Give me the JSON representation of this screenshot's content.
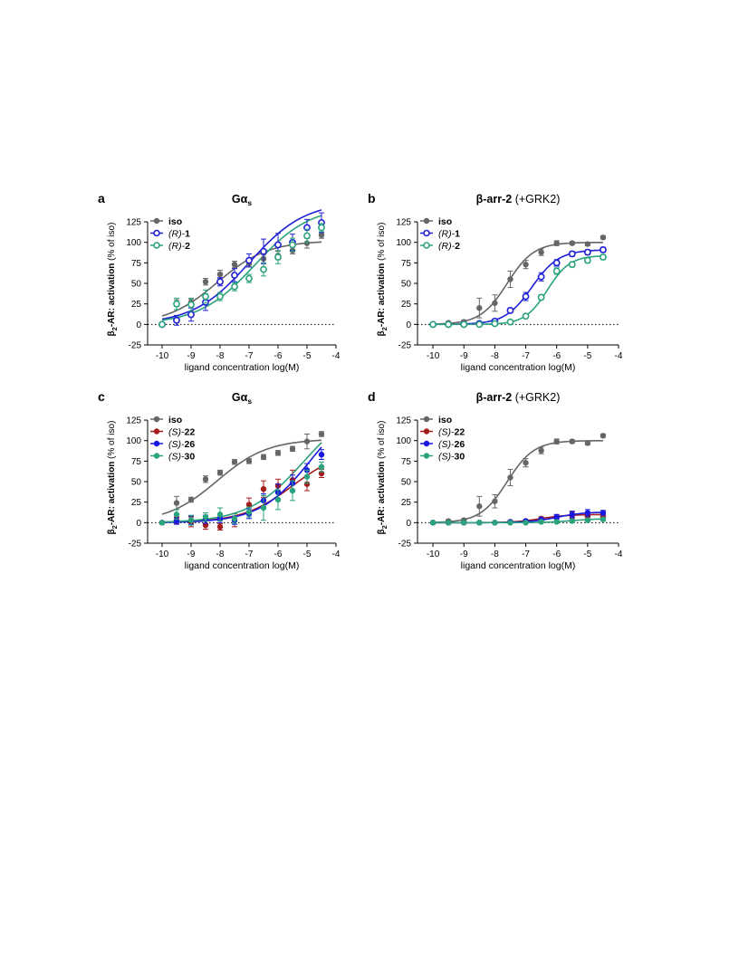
{
  "chart_data": [
    {
      "panel": "a",
      "type": "scatter",
      "title": "Gα",
      "title_sub": "s",
      "title_suffix": "",
      "ylabel_prefix": "β",
      "ylabel_sub": "2",
      "ylabel_bold": "-AR: activation",
      "ylabel_rest": " (% of iso)",
      "xlabel": "ligand concentration log(M)",
      "xlim": [
        -10.5,
        -4
      ],
      "ylim": [
        -25,
        135
      ],
      "xticks": [
        -10,
        -9,
        -8,
        -7,
        -6,
        -5,
        -4
      ],
      "yticks": [
        -25,
        0,
        25,
        50,
        75,
        100,
        125
      ],
      "zero_line": true,
      "legend_position": "top-left",
      "series": [
        {
          "name": "iso",
          "name_prefix": "",
          "name_suffix": "",
          "color": "#666666",
          "marker": "filled",
          "x": [
            -10,
            -9.5,
            -9,
            -8.5,
            -8,
            -7.5,
            -7,
            -6.5,
            -6,
            -5.5,
            -5,
            -4.5
          ],
          "y": [
            0,
            26,
            27,
            52,
            61,
            73,
            74,
            80,
            84,
            90,
            99,
            109
          ],
          "err": [
            0,
            4,
            4,
            4,
            5,
            4,
            4,
            5,
            5,
            4,
            6,
            4
          ],
          "fit": {
            "bottom": 0,
            "top": 102,
            "logec50": -8.1,
            "hill": 0.5
          }
        },
        {
          "name": "1",
          "name_prefix": "(R)-",
          "name_suffix": "",
          "color": "#1f1fd6",
          "marker": "open",
          "x": [
            -10,
            -9.5,
            -9,
            -8.5,
            -8,
            -7.5,
            -7,
            -6.5,
            -6,
            -5.5,
            -5,
            -4.5
          ],
          "y": [
            0,
            5,
            12,
            27,
            52,
            60,
            78,
            89,
            97,
            100,
            118,
            124
          ],
          "err": [
            0,
            6,
            8,
            10,
            5,
            8,
            8,
            15,
            14,
            10,
            10,
            12
          ],
          "fit": {
            "bottom": 0,
            "top": 150,
            "logec50": -7.0,
            "hill": 0.45
          }
        },
        {
          "name": "2",
          "name_prefix": "(R)-",
          "name_suffix": "",
          "color": "#2aa37e",
          "marker": "open",
          "x": [
            -10,
            -9.5,
            -9,
            -8.5,
            -8,
            -7.5,
            -7,
            -6.5,
            -6,
            -5.5,
            -5,
            -4.5
          ],
          "y": [
            0,
            25,
            24,
            34,
            34,
            46,
            56,
            67,
            82,
            97,
            108,
            118
          ],
          "err": [
            0,
            7,
            8,
            8,
            5,
            5,
            5,
            8,
            8,
            8,
            8,
            5
          ],
          "fit": {
            "bottom": 0,
            "top": 145,
            "logec50": -6.8,
            "hill": 0.45
          }
        }
      ]
    },
    {
      "panel": "b",
      "type": "scatter",
      "title": "β-arr-2",
      "title_sub": "",
      "title_suffix": " (+GRK2)",
      "ylabel_prefix": "β",
      "ylabel_sub": "2",
      "ylabel_bold": "-AR: activation",
      "ylabel_rest": " (% of iso)",
      "xlabel": "ligand concentration log(M)",
      "xlim": [
        -10.5,
        -4
      ],
      "ylim": [
        -25,
        135
      ],
      "xticks": [
        -10,
        -9,
        -8,
        -7,
        -6,
        -5,
        -4
      ],
      "yticks": [
        -25,
        0,
        25,
        50,
        75,
        100,
        125
      ],
      "zero_line": true,
      "legend_position": "top-left",
      "series": [
        {
          "name": "iso",
          "name_prefix": "",
          "name_suffix": "",
          "color": "#666666",
          "marker": "filled",
          "x": [
            -10,
            -9.5,
            -9,
            -8.5,
            -8,
            -7.5,
            -7,
            -6.5,
            -6,
            -5.5,
            -5,
            -4.5
          ],
          "y": [
            0,
            2,
            3,
            20,
            26,
            55,
            73,
            88,
            99,
            99,
            98,
            106
          ],
          "err": [
            0,
            1,
            2,
            12,
            10,
            10,
            5,
            4,
            3,
            2,
            2,
            2
          ],
          "fit": {
            "bottom": 0,
            "top": 100,
            "logec50": -7.6,
            "hill": 1.0
          }
        },
        {
          "name": "1",
          "name_prefix": "(R)-",
          "name_suffix": "",
          "color": "#1f1fd6",
          "marker": "open",
          "x": [
            -10,
            -9.5,
            -9,
            -8.5,
            -8,
            -7.5,
            -7,
            -6.5,
            -6,
            -5.5,
            -5,
            -4.5
          ],
          "y": [
            0,
            0,
            0,
            1,
            4,
            17,
            34,
            58,
            75,
            86,
            88,
            91
          ],
          "err": [
            0,
            0,
            0,
            1,
            2,
            3,
            5,
            5,
            4,
            3,
            3,
            3
          ],
          "fit": {
            "bottom": 0,
            "top": 91,
            "logec50": -6.8,
            "hill": 1.0
          }
        },
        {
          "name": "2",
          "name_prefix": "(R)-",
          "name_suffix": "",
          "color": "#2aa37e",
          "marker": "open",
          "x": [
            -10,
            -9.5,
            -9,
            -8.5,
            -8,
            -7.5,
            -7,
            -6.5,
            -6,
            -5.5,
            -5,
            -4.5
          ],
          "y": [
            0,
            0,
            0,
            0,
            1,
            3,
            10,
            33,
            65,
            73,
            78,
            82
          ],
          "err": [
            0,
            0,
            0,
            0,
            1,
            1,
            2,
            3,
            4,
            3,
            3,
            3
          ],
          "fit": {
            "bottom": 0,
            "top": 84,
            "logec50": -6.3,
            "hill": 1.2
          }
        }
      ]
    },
    {
      "panel": "c",
      "type": "scatter",
      "title": "Gα",
      "title_sub": "s",
      "title_suffix": "",
      "ylabel_prefix": "β",
      "ylabel_sub": "2",
      "ylabel_bold": "-AR: activation",
      "ylabel_rest": " (% of iso)",
      "xlabel": "ligand concentration log(M)",
      "xlim": [
        -10.5,
        -4
      ],
      "ylim": [
        -25,
        135
      ],
      "xticks": [
        -10,
        -9,
        -8,
        -7,
        -6,
        -5,
        -4
      ],
      "yticks": [
        -25,
        0,
        25,
        50,
        75,
        100,
        125
      ],
      "zero_line": true,
      "legend_position": "top-left",
      "series": [
        {
          "name": "iso",
          "name_prefix": "",
          "name_suffix": "",
          "color": "#666666",
          "marker": "filled",
          "x": [
            -10,
            -9.5,
            -9,
            -8.5,
            -8,
            -7.5,
            -7,
            -6.5,
            -6,
            -5.5,
            -5,
            -4.5
          ],
          "y": [
            0,
            24,
            28,
            53,
            61,
            74,
            75,
            80,
            85,
            90,
            99,
            108
          ],
          "err": [
            0,
            8,
            3,
            4,
            3,
            3,
            3,
            3,
            3,
            3,
            9,
            3
          ],
          "fit": {
            "bottom": 0,
            "top": 102,
            "logec50": -8.1,
            "hill": 0.5
          }
        },
        {
          "name": "22",
          "name_prefix": "(S)-",
          "name_suffix": "",
          "color": "#a31d1d",
          "marker": "filled",
          "x": [
            -10,
            -9.5,
            -9,
            -8.5,
            -8,
            -7.5,
            -7,
            -6.5,
            -6,
            -5.5,
            -5,
            -4.5
          ],
          "y": [
            0,
            3,
            1,
            -3,
            -5,
            3,
            22,
            41,
            45,
            52,
            47,
            60
          ],
          "err": [
            0,
            4,
            6,
            5,
            4,
            8,
            8,
            10,
            8,
            12,
            8,
            5
          ],
          "fit": {
            "bottom": 0,
            "top": 90,
            "logec50": -5.5,
            "hill": 0.5
          }
        },
        {
          "name": "26",
          "name_prefix": "(S)-",
          "name_suffix": "",
          "color": "#1818e0",
          "marker": "filled",
          "x": [
            -10,
            -9.5,
            -9,
            -8.5,
            -8,
            -7.5,
            -7,
            -6.5,
            -6,
            -5.5,
            -5,
            -4.5
          ],
          "y": [
            0,
            2,
            3,
            4,
            5,
            3,
            11,
            27,
            37,
            48,
            64,
            83
          ],
          "err": [
            0,
            4,
            5,
            5,
            5,
            5,
            6,
            8,
            10,
            10,
            8,
            6
          ],
          "fit": {
            "bottom": 0,
            "top": 150,
            "logec50": -4.9,
            "hill": 0.5
          }
        },
        {
          "name": "30",
          "name_prefix": "(S)-",
          "name_suffix": "",
          "color": "#2aa37e",
          "marker": "filled",
          "x": [
            -10,
            -9.5,
            -9,
            -8.5,
            -8,
            -7.5,
            -7,
            -6.5,
            -6,
            -5.5,
            -5,
            -4.5
          ],
          "y": [
            0,
            10,
            3,
            7,
            10,
            5,
            13,
            18,
            28,
            39,
            56,
            68
          ],
          "err": [
            0,
            6,
            6,
            5,
            8,
            6,
            6,
            15,
            12,
            12,
            8,
            6
          ],
          "fit": {
            "bottom": 0,
            "top": 150,
            "logec50": -5.1,
            "hill": 0.45
          }
        }
      ]
    },
    {
      "panel": "d",
      "type": "scatter",
      "title": "β-arr-2",
      "title_sub": "",
      "title_suffix": " (+GRK2)",
      "ylabel_prefix": "β",
      "ylabel_sub": "2",
      "ylabel_bold": "-AR: activation",
      "ylabel_rest": " (% of iso)",
      "xlabel": "ligand concentration log(M)",
      "xlim": [
        -10.5,
        -4
      ],
      "ylim": [
        -25,
        135
      ],
      "xticks": [
        -10,
        -9,
        -8,
        -7,
        -6,
        -5,
        -4
      ],
      "yticks": [
        -25,
        0,
        25,
        50,
        75,
        100,
        125
      ],
      "zero_line": true,
      "legend_position": "top-left",
      "series": [
        {
          "name": "iso",
          "name_prefix": "",
          "name_suffix": "",
          "color": "#666666",
          "marker": "filled",
          "x": [
            -10,
            -9.5,
            -9,
            -8.5,
            -8,
            -7.5,
            -7,
            -6.5,
            -6,
            -5.5,
            -5,
            -4.5
          ],
          "y": [
            0,
            2,
            3,
            20,
            26,
            55,
            73,
            88,
            99,
            99,
            97,
            106
          ],
          "err": [
            0,
            1,
            2,
            12,
            8,
            10,
            5,
            4,
            3,
            2,
            2,
            2
          ],
          "fit": {
            "bottom": 0,
            "top": 100,
            "logec50": -7.6,
            "hill": 1.0
          }
        },
        {
          "name": "22",
          "name_prefix": "(S)-",
          "name_suffix": "",
          "color": "#a31d1d",
          "marker": "filled",
          "x": [
            -10,
            -9.5,
            -9,
            -8.5,
            -8,
            -7.5,
            -7,
            -6.5,
            -6,
            -5.5,
            -5,
            -4.5
          ],
          "y": [
            0,
            0,
            0,
            0,
            0,
            1,
            2,
            5,
            7,
            9,
            8,
            7
          ],
          "err": [
            0,
            0,
            0,
            0,
            0,
            1,
            1,
            2,
            2,
            4,
            4,
            3
          ],
          "fit": {
            "bottom": 0,
            "top": 10,
            "logec50": -6.5,
            "hill": 1.0
          }
        },
        {
          "name": "26",
          "name_prefix": "(S)-",
          "name_suffix": "",
          "color": "#1818e0",
          "marker": "filled",
          "x": [
            -10,
            -9.5,
            -9,
            -8.5,
            -8,
            -7.5,
            -7,
            -6.5,
            -6,
            -5.5,
            -5,
            -4.5
          ],
          "y": [
            0,
            0,
            0,
            0,
            0,
            1,
            2,
            4,
            7,
            10,
            12,
            12
          ],
          "err": [
            0,
            0,
            0,
            0,
            0,
            1,
            1,
            2,
            3,
            4,
            4,
            3
          ],
          "fit": {
            "bottom": 0,
            "top": 13,
            "logec50": -6.0,
            "hill": 1.0
          }
        },
        {
          "name": "30",
          "name_prefix": "(S)-",
          "name_suffix": "",
          "color": "#2aa37e",
          "marker": "filled",
          "x": [
            -10,
            -9.5,
            -9,
            -8.5,
            -8,
            -7.5,
            -7,
            -6.5,
            -6,
            -5.5,
            -5,
            -4.5
          ],
          "y": [
            0,
            0,
            0,
            0,
            0,
            0,
            0,
            1,
            1,
            2,
            3,
            4
          ],
          "err": [
            0,
            0,
            0,
            0,
            0,
            0,
            0,
            1,
            1,
            1,
            2,
            2
          ],
          "fit": {
            "bottom": 0,
            "top": 5,
            "logec50": -5.5,
            "hill": 1.0
          }
        }
      ]
    }
  ]
}
